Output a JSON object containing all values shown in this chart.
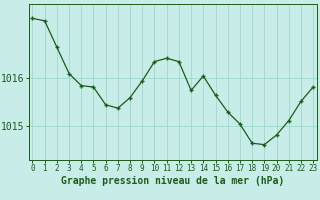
{
  "hours": [
    0,
    1,
    2,
    3,
    4,
    5,
    6,
    7,
    8,
    9,
    10,
    11,
    12,
    13,
    14,
    15,
    16,
    17,
    18,
    19,
    20,
    21,
    22,
    23
  ],
  "pressure": [
    1017.25,
    1017.2,
    1016.65,
    1016.1,
    1015.85,
    1015.82,
    1015.45,
    1015.38,
    1015.6,
    1015.95,
    1016.35,
    1016.42,
    1016.35,
    1015.75,
    1016.05,
    1015.65,
    1015.3,
    1015.05,
    1014.65,
    1014.62,
    1014.82,
    1015.12,
    1015.52,
    1015.82
  ],
  "line_color": "#1a5c1a",
  "marker_color": "#1a5c1a",
  "bg_color": "#c8ede8",
  "grid_color": "#a0d8d0",
  "axis_color": "#1a5c1a",
  "xlabel": "Graphe pression niveau de la mer (hPa)",
  "ytick_labels": [
    "1016",
    "1015"
  ],
  "ytick_vals": [
    1016.0,
    1015.0
  ],
  "ylim": [
    1014.3,
    1017.55
  ],
  "xlim": [
    -0.3,
    23.3
  ],
  "font_size_xlabel": 7,
  "font_size_ytick": 7,
  "font_size_xtick": 5.5
}
